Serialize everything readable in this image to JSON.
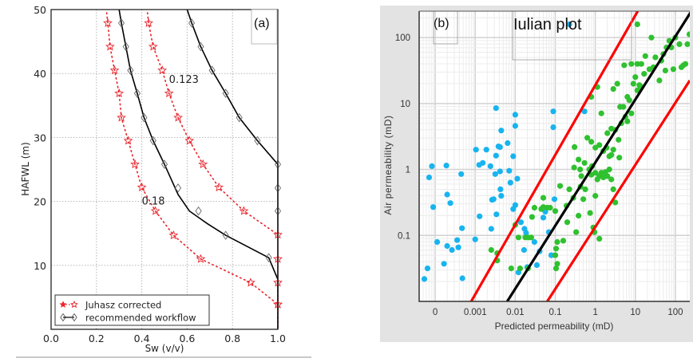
{
  "chart_data": [
    {
      "type": "line",
      "panel_label": "(a)",
      "title": "",
      "xlabel": "Sw (v/v)",
      "ylabel": "HAFWL (m)",
      "xlim": [
        0.0,
        1.0
      ],
      "ylim": [
        0,
        50
      ],
      "xticks": [
        "0.0",
        "0.2",
        "0.4",
        "0.6",
        "0.8",
        "1.0"
      ],
      "xtick_values": [
        0,
        0.2,
        0.4,
        0.6,
        0.8,
        1.0
      ],
      "yticks": [
        "10",
        "20",
        "30",
        "40",
        "50"
      ],
      "ytick_values": [
        10,
        20,
        30,
        40,
        50
      ],
      "grid": true,
      "legend_position": "bottom-left",
      "legend": [
        {
          "label": "Juhasz corrected",
          "color": "#e8232a",
          "marker": "star",
          "style": "dotted"
        },
        {
          "label": "recommended workflow",
          "color": "#000000",
          "marker": "diamond",
          "style": "solid"
        }
      ],
      "annotations": [
        {
          "text": "0.123",
          "x": 0.52,
          "y": 38.5
        },
        {
          "text": "0.18",
          "x": 0.4,
          "y": 19.5
        }
      ],
      "series": [
        {
          "name": "recommended workflow (0.18)",
          "group": "recommended workflow",
          "x": [
            0.3,
            0.31,
            0.33,
            0.35,
            0.38,
            0.41,
            0.45,
            0.5,
            0.56,
            0.61,
            0.69,
            0.77,
            0.96,
            1.0,
            1.0
          ],
          "y": [
            50,
            47.9,
            44.2,
            40.5,
            36.9,
            33.1,
            29.5,
            25.8,
            21.1,
            18.5,
            16.5,
            14.7,
            11.2,
            7.8,
            0.1
          ],
          "markers_x": [
            0.31,
            0.33,
            0.35,
            0.38,
            0.41,
            0.45,
            0.5,
            0.56,
            0.65,
            0.77,
            0.96
          ],
          "markers_y": [
            47.9,
            44.2,
            40.5,
            36.9,
            33.1,
            29.5,
            25.8,
            22.1,
            18.5,
            14.7,
            11.2
          ]
        },
        {
          "name": "recommended workflow (0.123)",
          "group": "recommended workflow",
          "x": [
            0.6,
            0.62,
            0.66,
            0.71,
            0.77,
            0.83,
            0.91,
            1.0,
            1.0
          ],
          "y": [
            50,
            47.9,
            44.2,
            40.5,
            36.9,
            33.1,
            29.5,
            25.8,
            0.1
          ],
          "markers_x": [
            0.62,
            0.66,
            0.71,
            0.77,
            0.83,
            0.91,
            1.0,
            1.0,
            1.0
          ],
          "markers_y": [
            47.9,
            44.2,
            40.5,
            36.9,
            33.1,
            29.5,
            25.8,
            22.1,
            18.5
          ]
        },
        {
          "name": "Juhasz corrected (0.18)",
          "group": "Juhasz corrected",
          "x": [
            0.245,
            0.25,
            0.26,
            0.28,
            0.3,
            0.31,
            0.34,
            0.37,
            0.4,
            0.46,
            0.54,
            0.66,
            0.88,
            1.0
          ],
          "y": [
            49.5,
            47.9,
            44.2,
            40.5,
            36.9,
            33.1,
            29.5,
            25.8,
            22.2,
            18.5,
            14.7,
            11.0,
            7.3,
            3.9
          ],
          "markers_x": [
            0.25,
            0.26,
            0.28,
            0.3,
            0.31,
            0.34,
            0.37,
            0.4,
            0.46,
            0.54,
            0.66,
            0.88,
            1.0
          ],
          "markers_y": [
            47.9,
            44.2,
            40.5,
            36.9,
            33.1,
            29.5,
            25.8,
            22.2,
            18.5,
            14.7,
            11.0,
            7.3,
            3.9
          ]
        },
        {
          "name": "Juhasz corrected (0.123)",
          "group": "Juhasz corrected",
          "x": [
            0.425,
            0.43,
            0.45,
            0.49,
            0.52,
            0.56,
            0.61,
            0.67,
            0.74,
            0.85,
            1.0,
            1.0
          ],
          "y": [
            49.5,
            47.9,
            44.2,
            40.5,
            36.9,
            33.1,
            29.5,
            25.8,
            22.2,
            18.5,
            14.8,
            0.1
          ],
          "markers_x": [
            0.43,
            0.45,
            0.49,
            0.52,
            0.56,
            0.61,
            0.67,
            0.74,
            0.85,
            1.0,
            1.0,
            1.0,
            1.0
          ],
          "markers_y": [
            47.9,
            44.2,
            40.5,
            36.9,
            33.1,
            29.5,
            25.8,
            22.2,
            18.5,
            14.8,
            11.0,
            7.3,
            3.9
          ]
        }
      ]
    },
    {
      "type": "scatter",
      "panel_label": "(b)",
      "title": "Iulian plot",
      "xlabel": "Predicted permeability (mD)",
      "ylabel": "Air permeability (mD)",
      "xscale": "log",
      "yscale": "log",
      "xlim_log10": [
        -4.4,
        2.36
      ],
      "ylim_log10": [
        -2.0,
        2.4
      ],
      "xticks": [
        "0",
        "0.001",
        "0.01",
        "0.1",
        "1",
        "10",
        "100"
      ],
      "xtick_log10": [
        -4,
        -3,
        -2,
        -1,
        0,
        1,
        2
      ],
      "yticks": [
        "0.1",
        "1",
        "10",
        "100"
      ],
      "ytick_log10": [
        -1,
        0,
        1,
        2
      ],
      "grid": true,
      "lines": [
        {
          "name": "1:1 line",
          "color": "#000000",
          "x_log10": [
            -2.2,
            2.4
          ],
          "y_log10": [
            -2.0,
            2.4
          ]
        },
        {
          "name": "upper bound",
          "color": "#ff0000",
          "x_log10": [
            -3.1,
            1.06
          ],
          "y_log10": [
            -2.0,
            2.4
          ]
        },
        {
          "name": "lower bound",
          "color": "#ff0000",
          "x_log10": [
            -1.2,
            2.36
          ],
          "y_log10": [
            -2.0,
            1.35
          ]
        }
      ],
      "series": [
        {
          "name": "blue points",
          "color": "#18b4ee",
          "points_log10": [
            [
              -4.27,
              -1.66
            ],
            [
              -4.19,
              -1.5
            ],
            [
              -4.05,
              -0.57
            ],
            [
              -3.95,
              -1.1
            ],
            [
              -3.78,
              -1.43
            ],
            [
              -3.7,
              -1.16
            ],
            [
              -3.7,
              -0.38
            ],
            [
              -3.62,
              -0.51
            ],
            [
              -3.58,
              -1.22
            ],
            [
              -3.45,
              -1.07
            ],
            [
              -3.42,
              -1.18
            ],
            [
              -3.33,
              -0.89
            ],
            [
              -3.32,
              -1.65
            ],
            [
              -3.0,
              -1.06
            ],
            [
              -2.89,
              -0.71
            ],
            [
              -2.6,
              -0.9
            ],
            [
              -2.58,
              -0.46
            ],
            [
              -2.54,
              -0.45
            ],
            [
              -2.5,
              -0.07
            ],
            [
              -2.47,
              -0.68
            ],
            [
              -2.37,
              -0.3
            ],
            [
              -2.35,
              -0.4
            ],
            [
              -2.12,
              -0.2
            ],
            [
              -2.05,
              -0.6
            ],
            [
              -2.0,
              -0.54
            ],
            [
              -1.95,
              -0.14
            ],
            [
              -1.92,
              -1.56
            ],
            [
              -1.86,
              -0.8
            ],
            [
              -1.78,
              -1.22
            ],
            [
              -1.77,
              -0.9
            ],
            [
              -1.73,
              -0.96
            ],
            [
              -1.7,
              -1.48
            ],
            [
              -1.52,
              -1.1
            ],
            [
              -1.46,
              -1.45
            ],
            [
              -1.39,
              -1.24
            ],
            [
              -1.3,
              -0.73
            ],
            [
              -1.25,
              -0.64
            ],
            [
              -1.16,
              -0.95
            ],
            [
              -1.1,
              -1.3
            ],
            [
              -1.02,
              -0.45
            ],
            [
              -2.98,
              0.3
            ],
            [
              -2.72,
              0.3
            ],
            [
              -2.9,
              0.07
            ],
            [
              -2.81,
              0.1
            ],
            [
              -2.62,
              0.05
            ],
            [
              -2.48,
              0.21
            ],
            [
              -2.42,
              0.35
            ],
            [
              -2.38,
              0.34
            ],
            [
              -2.35,
              0.59
            ],
            [
              -2.19,
              0.4
            ],
            [
              -2.05,
              0.2
            ],
            [
              -2.0,
              0.83
            ],
            [
              -2.0,
              0.66
            ],
            [
              -2.48,
              0.93
            ],
            [
              -2.15,
              -0.02
            ],
            [
              -2.38,
              -0.03
            ],
            [
              -3.72,
              0.06
            ],
            [
              -3.35,
              -0.07
            ],
            [
              -1.05,
              0.88
            ],
            [
              -1.05,
              0.64
            ],
            [
              -0.27,
              0.88
            ],
            [
              -0.65,
              2.2
            ],
            [
              -4.08,
              0.05
            ],
            [
              -4.15,
              -0.12
            ]
          ]
        },
        {
          "name": "green points",
          "color": "#2fc12f",
          "points_log10": [
            [
              -2.6,
              -1.22
            ],
            [
              -2.45,
              -1.38
            ],
            [
              -2.45,
              -1.27
            ],
            [
              -2.1,
              -1.5
            ],
            [
              -2.0,
              -0.84
            ],
            [
              -1.92,
              -1.03
            ],
            [
              -1.75,
              -1.03
            ],
            [
              -1.67,
              -1.03
            ],
            [
              -1.6,
              -1.03
            ],
            [
              -1.88,
              -1.5
            ],
            [
              -1.68,
              -1.5
            ],
            [
              -1.58,
              -0.72
            ],
            [
              -1.52,
              -0.58
            ],
            [
              -1.35,
              -0.6
            ],
            [
              -1.3,
              -0.43
            ],
            [
              -1.2,
              -0.58
            ],
            [
              -1.13,
              -0.58
            ],
            [
              -1.0,
              -0.63
            ],
            [
              -1.3,
              -0.57
            ],
            [
              -0.88,
              -0.25
            ],
            [
              -0.95,
              -1.1
            ],
            [
              -0.98,
              -1.2
            ],
            [
              -1.0,
              -1.3
            ],
            [
              -0.95,
              -1.43
            ],
            [
              -0.98,
              -1.5
            ],
            [
              -0.7,
              -0.8
            ],
            [
              -0.8,
              -1.08
            ],
            [
              -0.72,
              -0.55
            ],
            [
              -0.65,
              -0.3
            ],
            [
              -0.55,
              -0.43
            ],
            [
              -0.48,
              -0.95
            ],
            [
              -0.42,
              -0.7
            ],
            [
              -0.37,
              -0.26
            ],
            [
              -0.3,
              -0.45
            ],
            [
              -0.25,
              -0.3
            ],
            [
              -0.13,
              -0.66
            ],
            [
              -0.05,
              -0.88
            ],
            [
              -0.02,
              -0.95
            ],
            [
              0.0,
              -0.4
            ],
            [
              0.1,
              -1.05
            ],
            [
              -0.52,
              0.34
            ],
            [
              -0.53,
              0.03
            ],
            [
              -0.42,
              0.15
            ],
            [
              -0.38,
              0.0
            ],
            [
              -0.35,
              -0.1
            ],
            [
              -0.27,
              0.1
            ],
            [
              -0.15,
              0.0
            ],
            [
              -0.1,
              -0.08
            ],
            [
              -0.08,
              0.05
            ],
            [
              0.0,
              -0.05
            ],
            [
              0.05,
              -0.15
            ],
            [
              0.1,
              -0.1
            ],
            [
              0.15,
              -0.05
            ],
            [
              0.2,
              -0.12
            ],
            [
              0.25,
              -0.04
            ],
            [
              0.3,
              -0.1
            ],
            [
              0.35,
              0.0
            ],
            [
              0.4,
              -0.15
            ],
            [
              0.45,
              -0.3
            ],
            [
              0.5,
              -0.5
            ],
            [
              -0.2,
              0.48
            ],
            [
              -0.1,
              0.42
            ],
            [
              0.0,
              0.33
            ],
            [
              0.1,
              0.37
            ],
            [
              0.2,
              0.28
            ],
            [
              0.28,
              0.33
            ],
            [
              0.35,
              0.2
            ],
            [
              0.4,
              0.22
            ],
            [
              0.45,
              0.3
            ],
            [
              0.6,
              0.18
            ],
            [
              0.3,
              0.55
            ],
            [
              0.4,
              0.62
            ],
            [
              0.5,
              0.6
            ],
            [
              0.58,
              0.45
            ],
            [
              0.65,
              0.7
            ],
            [
              0.7,
              0.95
            ],
            [
              0.75,
              0.8
            ],
            [
              0.8,
              0.73
            ],
            [
              0.9,
              0.85
            ],
            [
              0.62,
              0.95
            ],
            [
              0.8,
              1.1
            ],
            [
              0.85,
              1.05
            ],
            [
              0.95,
              1.3
            ],
            [
              1.0,
              1.4
            ],
            [
              1.05,
              1.2
            ],
            [
              1.1,
              1.28
            ],
            [
              1.15,
              1.25
            ],
            [
              1.22,
              1.45
            ],
            [
              0.9,
              1.6
            ],
            [
              1.05,
              1.6
            ],
            [
              1.35,
              1.52
            ],
            [
              1.45,
              1.55
            ],
            [
              1.5,
              1.7
            ],
            [
              1.65,
              1.65
            ],
            [
              1.7,
              1.75
            ],
            [
              1.75,
              1.5
            ],
            [
              1.85,
              1.95
            ],
            [
              1.9,
              1.85
            ],
            [
              1.95,
              1.52
            ],
            [
              2.0,
              2.0
            ],
            [
              2.1,
              1.9
            ],
            [
              2.15,
              1.55
            ],
            [
              2.2,
              1.58
            ],
            [
              2.3,
              1.9
            ],
            [
              2.35,
              2.05
            ],
            [
              1.4,
              2.0
            ],
            [
              1.25,
              1.72
            ],
            [
              1.15,
              1.6
            ],
            [
              0.55,
              1.3
            ],
            [
              0.45,
              1.22
            ],
            [
              -0.1,
              1.1
            ],
            [
              0.05,
              1.25
            ],
            [
              0.15,
              0.85
            ],
            [
              1.05,
              2.2
            ],
            [
              0.72,
              1.58
            ],
            [
              1.6,
              1.35
            ],
            [
              1.78,
              1.85
            ],
            [
              2.25,
              1.6
            ]
          ]
        }
      ]
    }
  ]
}
